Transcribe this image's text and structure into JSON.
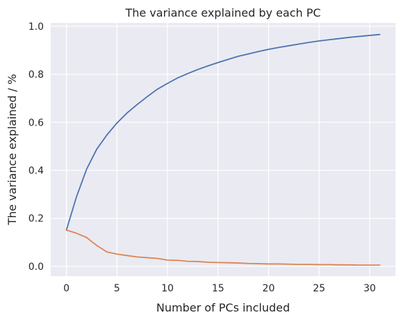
{
  "chart_data": {
    "type": "line",
    "title": "The variance explained by each PC",
    "xlabel": "Number of PCs included",
    "ylabel": "The variance explained / %",
    "xlim": [
      -1.55,
      32.55
    ],
    "ylim": [
      -0.0408,
      1.0142
    ],
    "xticks": [
      0,
      5,
      10,
      15,
      20,
      25,
      30
    ],
    "yticks": [
      0.0,
      0.2,
      0.4,
      0.6,
      0.8,
      1.0
    ],
    "xtick_labels": [
      "0",
      "5",
      "10",
      "15",
      "20",
      "25",
      "30"
    ],
    "ytick_labels": [
      "0.0",
      "0.2",
      "0.4",
      "0.6",
      "0.8",
      "1.0"
    ],
    "grid": true,
    "background": "#eaeaf2",
    "x": [
      0,
      1,
      2,
      3,
      4,
      5,
      6,
      7,
      8,
      9,
      10,
      11,
      12,
      13,
      14,
      15,
      16,
      17,
      18,
      19,
      20,
      21,
      22,
      23,
      24,
      25,
      26,
      27,
      28,
      29,
      30,
      31
    ],
    "series": [
      {
        "color": "#4c72b0",
        "values": [
          0.151,
          0.29,
          0.405,
          0.488,
          0.547,
          0.597,
          0.639,
          0.674,
          0.707,
          0.738,
          0.762,
          0.785,
          0.803,
          0.82,
          0.835,
          0.849,
          0.862,
          0.875,
          0.885,
          0.895,
          0.904,
          0.912,
          0.919,
          0.926,
          0.933,
          0.939,
          0.944,
          0.949,
          0.954,
          0.958,
          0.962,
          0.966
        ]
      },
      {
        "color": "#dd8452",
        "values": [
          0.151,
          0.138,
          0.12,
          0.087,
          0.06,
          0.051,
          0.045,
          0.039,
          0.036,
          0.033,
          0.026,
          0.025,
          0.021,
          0.02,
          0.017,
          0.016,
          0.015,
          0.014,
          0.012,
          0.011,
          0.01,
          0.01,
          0.009,
          0.008,
          0.008,
          0.007,
          0.007,
          0.006,
          0.006,
          0.005,
          0.005,
          0.005
        ]
      }
    ]
  }
}
